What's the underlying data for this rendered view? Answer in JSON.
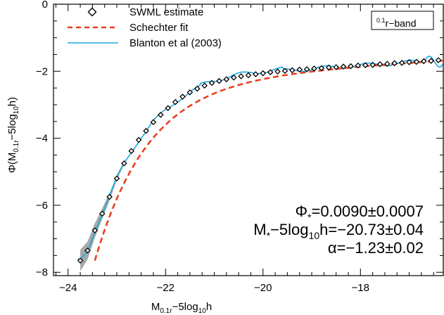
{
  "chart_data": {
    "type": "line",
    "xlabel": "M",
    "xlabel_sub": "0.1r",
    "xlabel_tail": "−5log",
    "xlabel_sub2": "10",
    "xlabel_end": "h",
    "ylabel_pre": "Φ(M",
    "ylabel_sub": "0.1r",
    "ylabel_mid": "−5log",
    "ylabel_sub2": "10",
    "ylabel_end": "h)",
    "xlim": [
      -24.3,
      -16.3
    ],
    "ylim": [
      -8.1,
      0
    ],
    "xticks": [
      -24,
      -22,
      -20,
      -18
    ],
    "xtick_labels": [
      "−24",
      "−22",
      "−20",
      "−18"
    ],
    "yticks": [
      0,
      -2,
      -4,
      -6,
      -8
    ],
    "ytick_labels": [
      "0",
      "−2",
      "−4",
      "−6",
      "−8"
    ],
    "band_label_sup": "0.1",
    "band_label": "r−band",
    "legend": [
      {
        "label": "SWML estimate",
        "marker": "diamond",
        "color": "#000000"
      },
      {
        "label": "Schechter fit",
        "style": "dashed",
        "color": "#e8401c"
      },
      {
        "label": "Blanton et al (2003)",
        "style": "solid",
        "color": "#19a8e0"
      }
    ],
    "annotations": {
      "phi_star_sym": "Φ",
      "phi_star_sub": "*",
      "phi_star_val": "=0.0090±0.0007",
      "mstar_sym": "M",
      "mstar_sub": "*",
      "mstar_mid": "−5log",
      "mstar_sub2": "10",
      "mstar_val": "h=−20.73±0.04",
      "alpha_sym": "α",
      "alpha_val": "=−1.23±0.02"
    },
    "series": [
      {
        "name": "SWML estimate",
        "x": [
          -23.75,
          -23.6,
          -23.45,
          -23.3,
          -23.15,
          -23.0,
          -22.85,
          -22.7,
          -22.55,
          -22.4,
          -22.25,
          -22.1,
          -21.95,
          -21.8,
          -21.65,
          -21.5,
          -21.35,
          -21.2,
          -21.05,
          -20.9,
          -20.75,
          -20.6,
          -20.45,
          -20.3,
          -20.15,
          -20.0,
          -19.85,
          -19.7,
          -19.55,
          -19.4,
          -19.25,
          -19.1,
          -18.95,
          -18.8,
          -18.65,
          -18.5,
          -18.35,
          -18.2,
          -18.05,
          -17.9,
          -17.75,
          -17.6,
          -17.45,
          -17.3,
          -17.15,
          -17.0,
          -16.85,
          -16.7,
          -16.55,
          -16.4
        ],
        "y": [
          -7.65,
          -7.35,
          -6.75,
          -6.25,
          -5.75,
          -5.2,
          -4.75,
          -4.38,
          -4.05,
          -3.78,
          -3.52,
          -3.3,
          -3.1,
          -2.92,
          -2.76,
          -2.63,
          -2.52,
          -2.43,
          -2.35,
          -2.29,
          -2.24,
          -2.19,
          -2.15,
          -2.12,
          -2.09,
          -2.06,
          -2.03,
          -2.01,
          -1.99,
          -1.97,
          -1.95,
          -1.94,
          -1.92,
          -1.91,
          -1.89,
          -1.88,
          -1.86,
          -1.85,
          -1.83,
          -1.82,
          -1.81,
          -1.79,
          -1.78,
          -1.76,
          -1.75,
          -1.73,
          -1.72,
          -1.7,
          -1.69,
          -1.67
        ]
      }
    ]
  }
}
